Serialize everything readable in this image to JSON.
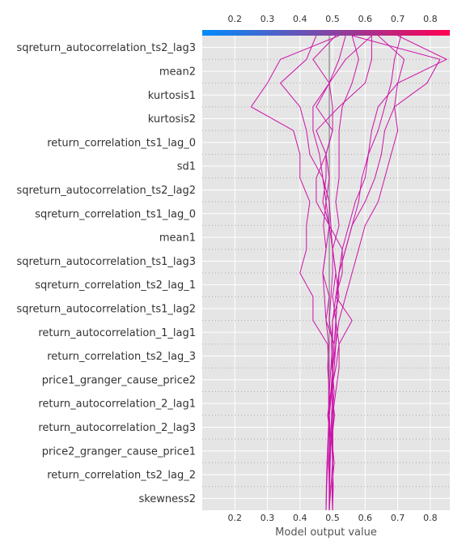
{
  "chart_data": {
    "type": "line",
    "title": "",
    "xlabel": "Model output value",
    "ylabel": "",
    "xlim": [
      0.1,
      0.86
    ],
    "xticks": [
      0.2,
      0.3,
      0.4,
      0.5,
      0.6,
      0.7,
      0.8
    ],
    "xtick_labels": [
      "0.2",
      "0.3",
      "0.4",
      "0.5",
      "0.6",
      "0.7",
      "0.8"
    ],
    "base_value": 0.49,
    "grid": true,
    "colorbar": {
      "position": "top",
      "colors": [
        "#008bfb",
        "#ff0052"
      ]
    },
    "features": [
      "sqreturn_autocorrelation_ts2_lag3",
      "mean2",
      "kurtosis1",
      "kurtosis2",
      "return_correlation_ts1_lag_0",
      "sd1",
      "sqreturn_autocorrelation_ts2_lag2",
      "sqreturn_correlation_ts1_lag_0",
      "mean1",
      "sqreturn_autocorrelation_ts1_lag3",
      "sqreturn_correlation_ts2_lag_1",
      "sqreturn_autocorrelation_ts1_lag2",
      "return_autocorrelation_1_lag1",
      "return_correlation_ts2_lag_3",
      "price1_granger_cause_price2",
      "return_autocorrelation_2_lag1",
      "return_autocorrelation_2_lag3",
      "price2_granger_cause_price1",
      "return_correlation_ts2_lag_2",
      "skewness2"
    ],
    "series": [
      {
        "values": [
          0.49,
          0.491,
          0.489,
          0.491,
          0.488,
          0.49,
          0.485,
          0.488,
          0.48,
          0.475,
          0.47,
          0.48,
          0.472,
          0.48,
          0.47,
          0.43,
          0.42,
          0.4,
          0.34,
          0.42,
          0.45
        ]
      },
      {
        "values": [
          0.5,
          0.502,
          0.5,
          0.501,
          0.499,
          0.505,
          0.498,
          0.5,
          0.49,
          0.495,
          0.5,
          0.5,
          0.495,
          0.49,
          0.47,
          0.46,
          0.44,
          0.44,
          0.49,
          0.44,
          0.51
        ]
      },
      {
        "values": [
          0.49,
          0.495,
          0.5,
          0.497,
          0.5,
          0.51,
          0.52,
          0.52,
          0.51,
          0.5,
          0.51,
          0.5,
          0.49,
          0.48,
          0.49,
          0.48,
          0.5,
          0.5,
          0.49,
          0.52,
          0.54
        ]
      },
      {
        "values": [
          0.49,
          0.49,
          0.488,
          0.492,
          0.488,
          0.488,
          0.488,
          0.485,
          0.44,
          0.44,
          0.4,
          0.42,
          0.42,
          0.43,
          0.4,
          0.4,
          0.38,
          0.25,
          0.3,
          0.34,
          0.52
        ]
      },
      {
        "values": [
          0.5,
          0.498,
          0.505,
          0.498,
          0.506,
          0.498,
          0.5,
          0.505,
          0.48,
          0.49,
          0.47,
          0.48,
          0.49,
          0.47,
          0.48,
          0.48,
          0.45,
          0.52,
          0.6,
          0.62,
          0.62
        ]
      },
      {
        "values": [
          0.49,
          0.49,
          0.49,
          0.495,
          0.485,
          0.495,
          0.51,
          0.52,
          0.56,
          0.51,
          0.53,
          0.53,
          0.49,
          0.45,
          0.45,
          0.48,
          0.5,
          0.45,
          0.49,
          0.54,
          0.62
        ]
      },
      {
        "values": [
          0.49,
          0.492,
          0.49,
          0.495,
          0.49,
          0.498,
          0.5,
          0.497,
          0.5,
          0.52,
          0.51,
          0.5,
          0.52,
          0.51,
          0.52,
          0.52,
          0.52,
          0.53,
          0.56,
          0.58,
          0.56
        ]
      },
      {
        "values": [
          0.5,
          0.5,
          0.501,
          0.5,
          0.503,
          0.5,
          0.505,
          0.51,
          0.51,
          0.515,
          0.52,
          0.53,
          0.55,
          0.57,
          0.6,
          0.61,
          0.64,
          0.66,
          0.68,
          0.69,
          0.71
        ]
      },
      {
        "values": [
          0.49,
          0.491,
          0.493,
          0.495,
          0.497,
          0.5,
          0.5,
          0.505,
          0.51,
          0.515,
          0.52,
          0.54,
          0.56,
          0.58,
          0.59,
          0.61,
          0.62,
          0.64,
          0.7,
          0.72,
          0.64
        ]
      },
      {
        "values": [
          0.48,
          0.481,
          0.483,
          0.486,
          0.489,
          0.49,
          0.495,
          0.5,
          0.5,
          0.51,
          0.52,
          0.54,
          0.56,
          0.6,
          0.63,
          0.65,
          0.66,
          0.69,
          0.7,
          0.85,
          0.7
        ]
      },
      {
        "values": [
          0.48,
          0.482,
          0.485,
          0.487,
          0.49,
          0.495,
          0.5,
          0.51,
          0.52,
          0.54,
          0.56,
          0.58,
          0.6,
          0.64,
          0.66,
          0.68,
          0.7,
          0.69,
          0.79,
          0.83,
          0.56
        ]
      }
    ]
  }
}
